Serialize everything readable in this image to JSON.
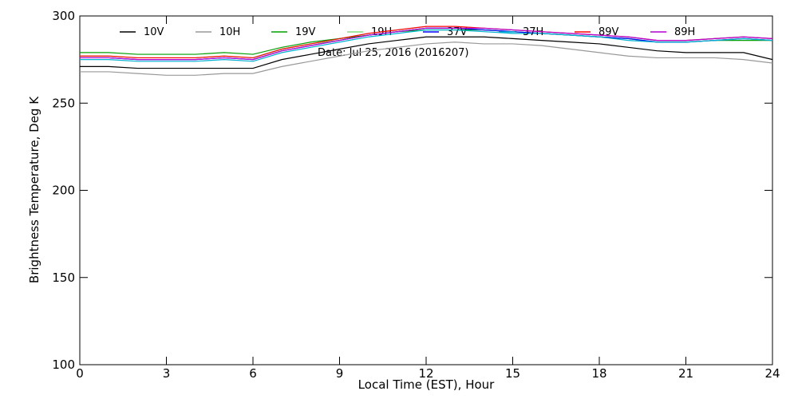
{
  "chart_data": {
    "type": "line",
    "xlabel": "Local Time (EST), Hour",
    "ylabel": "Brightness Temperature, Deg K",
    "annotation": "Date: Jul 25, 2016 (2016207)",
    "x": [
      0,
      1,
      2,
      3,
      4,
      5,
      6,
      7,
      8,
      9,
      10,
      11,
      12,
      13,
      14,
      15,
      16,
      17,
      18,
      19,
      20,
      21,
      22,
      23,
      24
    ],
    "xlim": [
      0,
      24
    ],
    "xticks": [
      0,
      3,
      6,
      9,
      12,
      15,
      18,
      21,
      24
    ],
    "ylim": [
      100,
      300
    ],
    "yticks": [
      100,
      150,
      200,
      250,
      300
    ],
    "series": [
      {
        "name": "10V",
        "color": "#000000",
        "values": [
          271,
          271,
          270,
          270,
          270,
          270,
          270,
          275,
          278,
          281,
          284,
          286,
          288,
          288,
          288,
          287,
          286,
          285,
          284,
          282,
          280,
          279,
          279,
          279,
          275
        ]
      },
      {
        "name": "10H",
        "color": "#999999",
        "values": [
          268,
          268,
          267,
          266,
          266,
          267,
          267,
          271,
          274,
          277,
          280,
          282,
          284,
          285,
          284,
          284,
          283,
          281,
          279,
          277,
          276,
          276,
          276,
          275,
          273
        ]
      },
      {
        "name": "19V",
        "color": "#00a000",
        "values": [
          279,
          279,
          278,
          278,
          278,
          279,
          278,
          282,
          285,
          287,
          289,
          291,
          292,
          292,
          292,
          291,
          290,
          289,
          288,
          287,
          285,
          285,
          286,
          286,
          286
        ]
      },
      {
        "name": "19H",
        "color": "#80e080",
        "values": [
          277,
          277,
          276,
          276,
          276,
          277,
          276,
          281,
          284,
          286,
          289,
          291,
          293,
          293,
          292,
          291,
          290,
          289,
          288,
          287,
          285,
          285,
          286,
          287,
          286
        ]
      },
      {
        "name": "37V",
        "color": "#0000ff",
        "values": [
          276,
          276,
          275,
          275,
          275,
          276,
          275,
          280,
          283,
          286,
          289,
          291,
          293,
          293,
          292,
          291,
          290,
          289,
          288,
          287,
          285,
          285,
          286,
          287,
          286
        ]
      },
      {
        "name": "37H",
        "color": "#00b0d0",
        "values": [
          275,
          275,
          274,
          274,
          274,
          275,
          274,
          279,
          282,
          285,
          288,
          290,
          292,
          292,
          291,
          290,
          290,
          289,
          288,
          286,
          285,
          285,
          286,
          287,
          286
        ]
      },
      {
        "name": "89V",
        "color": "#ff0000",
        "values": [
          277,
          277,
          276,
          276,
          276,
          277,
          276,
          281,
          284,
          287,
          290,
          292,
          294,
          294,
          293,
          292,
          291,
          290,
          289,
          288,
          286,
          286,
          287,
          288,
          287
        ]
      },
      {
        "name": "89H",
        "color": "#b000d0",
        "values": [
          276,
          276,
          275,
          275,
          275,
          276,
          275,
          280,
          283,
          286,
          289,
          291,
          293,
          293,
          293,
          292,
          291,
          290,
          289,
          288,
          286,
          286,
          287,
          288,
          287
        ]
      }
    ]
  }
}
